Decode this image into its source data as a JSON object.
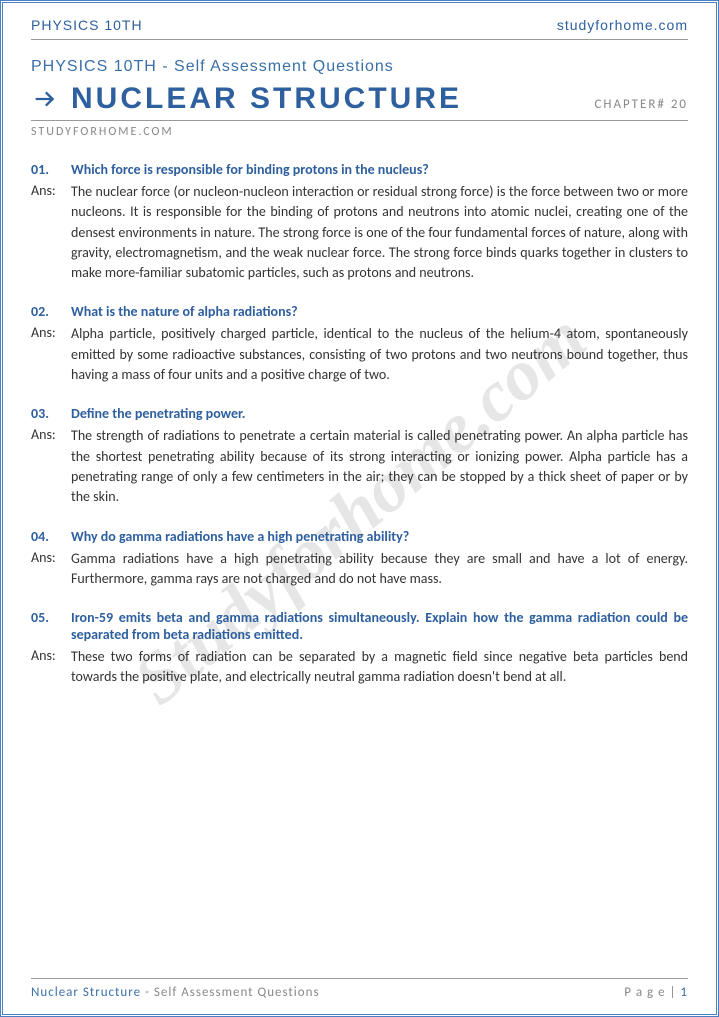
{
  "colors": {
    "primary_blue": "#2e5f9e",
    "secondary_blue": "#3a6fa8",
    "link_blue": "#4a7fc4",
    "gray_text": "#888",
    "body_text": "#333",
    "border_gray": "#999",
    "watermark": "rgba(140,140,140,0.22)",
    "background": "#ffffff"
  },
  "typography": {
    "title_fontsize": 30,
    "subheader_fontsize": 16,
    "body_fontsize": 14,
    "watermark_fontsize": 72
  },
  "top_header": {
    "left": "PHYSICS 10TH",
    "right": "studyforhome.com"
  },
  "sub_header": "PHYSICS 10TH - Self Assessment Questions",
  "main_title": "NUCLEAR STRUCTURE",
  "chapter_label": "CHAPTER# 20",
  "site_label": "STUDYFORHOME.COM",
  "watermark_text": "Studyforhome.com",
  "questions": [
    {
      "num": "01.",
      "q": "Which force is responsible for binding protons in the nucleus?",
      "ans_label": "Ans:",
      "a": "The nuclear force (or nucleon-nucleon interaction or residual strong force) is the force between two or more nucleons. It is responsible for the binding of protons and neutrons into atomic nuclei, creating one of the densest environments in nature. The strong force is one of the four fundamental forces of nature, along with gravity, electromagnetism, and the weak nuclear force. The strong force binds quarks together in clusters to make more-familiar subatomic particles, such as protons and neutrons."
    },
    {
      "num": "02.",
      "q": "What is the nature of alpha radiations?",
      "ans_label": "Ans:",
      "a": "Alpha particle, positively charged particle, identical to the nucleus of the helium-4 atom, spontaneously emitted by some radioactive substances, consisting of two protons and two neutrons bound together, thus having a mass of four units and a positive charge of two."
    },
    {
      "num": "03.",
      "q": "Define the penetrating power.",
      "ans_label": "Ans:",
      "a": "The strength of radiations to penetrate a certain material is called penetrating power. An alpha particle has the shortest penetrating ability because of its strong interacting or ionizing power. Alpha particle has a penetrating range of only a few centimeters in the air; they can be stopped by a thick sheet of paper or by the skin."
    },
    {
      "num": "04.",
      "q": "Why do gamma radiations have a high penetrating ability?",
      "ans_label": "Ans:",
      "a": "Gamma radiations have a high penetrating ability because they are small and have a lot of energy. Furthermore, gamma rays are not charged and do not have mass."
    },
    {
      "num": "05.",
      "q": "Iron-59 emits beta and gamma radiations simultaneously. Explain how the gamma radiation could be separated from beta radiations emitted.",
      "ans_label": "Ans:",
      "a": "These two forms of radiation can be separated by a magnetic field since negative beta particles bend towards the positive plate, and electrically neutral gamma radiation doesn't bend at all."
    }
  ],
  "footer": {
    "left_main": "Nuclear Structure",
    "left_sub": " - Self Assessment Questions",
    "right_label": "P a g e | ",
    "right_num": "1"
  }
}
